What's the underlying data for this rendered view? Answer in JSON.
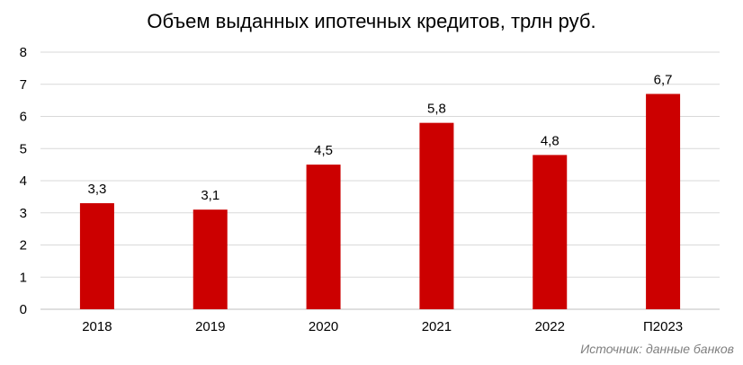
{
  "chart_data": {
    "type": "bar",
    "title": "Объем выданных ипотечных кредитов, трлн руб.",
    "categories": [
      "2018",
      "2019",
      "2020",
      "2021",
      "2022",
      "П2023"
    ],
    "values": [
      3.3,
      3.1,
      4.5,
      5.8,
      4.8,
      6.7
    ],
    "data_labels": [
      "3,3",
      "3,1",
      "4,5",
      "5,8",
      "4,8",
      "6,7"
    ],
    "y_ticks": [
      "0",
      "1",
      "2",
      "3",
      "4",
      "5",
      "6",
      "7",
      "8"
    ],
    "ylim": [
      0,
      8
    ],
    "xlabel": "",
    "ylabel": "",
    "grid": true,
    "bar_color": "#cc0000",
    "gridline_color": "#d9d9d9"
  },
  "source_note": "Источник: данные банков"
}
